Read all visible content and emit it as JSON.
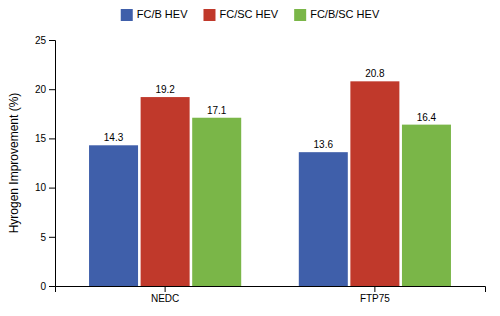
{
  "chart_data": {
    "type": "bar",
    "categories": [
      "NEDC",
      "FTP75"
    ],
    "series": [
      {
        "name": "FC/B HEV",
        "color": "#3f5faa",
        "values": [
          14.3,
          13.6
        ]
      },
      {
        "name": "FC/SC HEV",
        "color": "#c0392b",
        "values": [
          19.2,
          20.8
        ]
      },
      {
        "name": "FC/B/SC HEV",
        "color": "#7ab648",
        "values": [
          17.1,
          16.4
        ]
      }
    ],
    "ylabel": "Hyrogen Improvement (%)",
    "ylim": [
      0,
      25
    ],
    "yticks": [
      0,
      5,
      10,
      15,
      20,
      25
    ],
    "grid": false,
    "legend": "top",
    "data_labels": true
  }
}
